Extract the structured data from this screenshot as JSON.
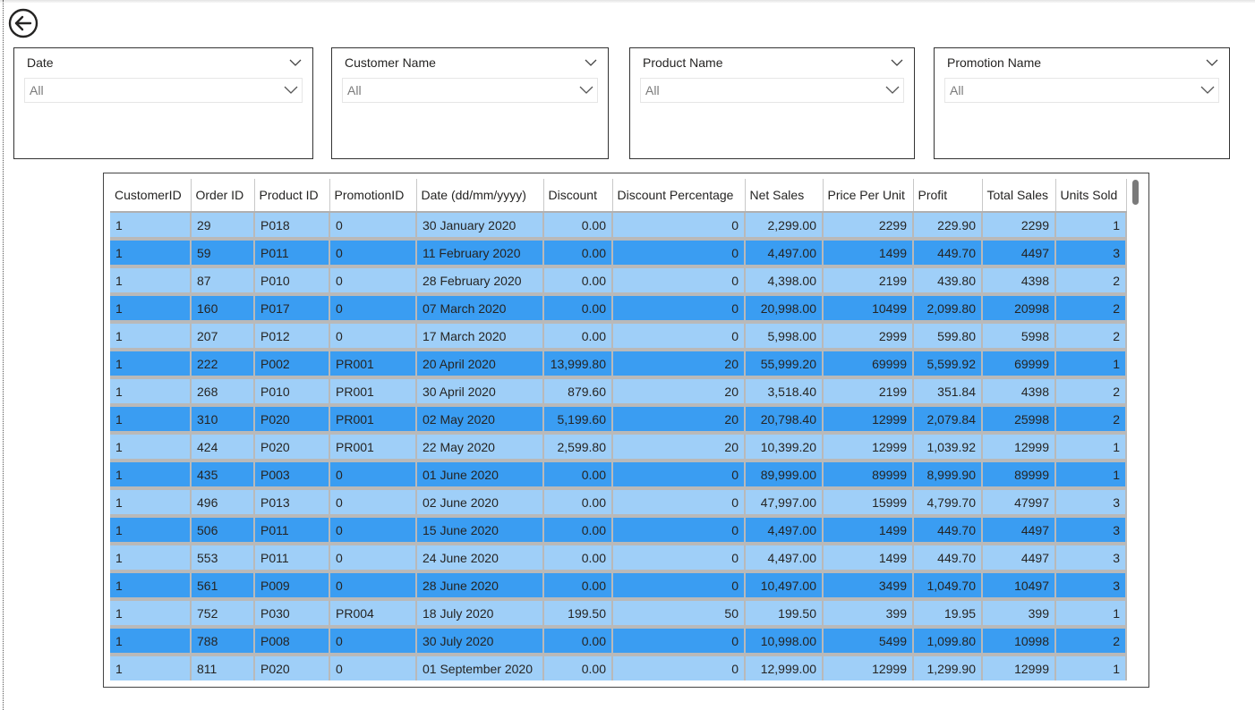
{
  "slicers": [
    {
      "title": "Date",
      "value": "All"
    },
    {
      "title": "Customer Name",
      "value": "All"
    },
    {
      "title": "Product Name",
      "value": "All"
    },
    {
      "title": "Promotion Name",
      "value": "All"
    }
  ],
  "icons": {
    "back": "back-arrow-icon",
    "chevron": "chevron-down-icon"
  },
  "colors": {
    "row_light": "#9fcff8",
    "row_dark": "#3a9df2",
    "row_separator": "#b9b9b9"
  },
  "table": {
    "columns": [
      "CustomerID",
      "Order ID",
      "Product ID",
      "PromotionID",
      "Date (dd/mm/yyyy)",
      "Discount",
      "Discount Percentage",
      "Net Sales",
      "Price Per Unit",
      "Profit",
      "Total Sales",
      "Units Sold"
    ],
    "rows": [
      [
        "1",
        "29",
        "P018",
        "0",
        "30 January 2020",
        "0.00",
        "0",
        "2,299.00",
        "2299",
        "229.90",
        "2299",
        "1"
      ],
      [
        "1",
        "59",
        "P011",
        "0",
        "11 February 2020",
        "0.00",
        "0",
        "4,497.00",
        "1499",
        "449.70",
        "4497",
        "3"
      ],
      [
        "1",
        "87",
        "P010",
        "0",
        "28 February 2020",
        "0.00",
        "0",
        "4,398.00",
        "2199",
        "439.80",
        "4398",
        "2"
      ],
      [
        "1",
        "160",
        "P017",
        "0",
        "07 March 2020",
        "0.00",
        "0",
        "20,998.00",
        "10499",
        "2,099.80",
        "20998",
        "2"
      ],
      [
        "1",
        "207",
        "P012",
        "0",
        "17 March 2020",
        "0.00",
        "0",
        "5,998.00",
        "2999",
        "599.80",
        "5998",
        "2"
      ],
      [
        "1",
        "222",
        "P002",
        "PR001",
        "20 April 2020",
        "13,999.80",
        "20",
        "55,999.20",
        "69999",
        "5,599.92",
        "69999",
        "1"
      ],
      [
        "1",
        "268",
        "P010",
        "PR001",
        "30 April 2020",
        "879.60",
        "20",
        "3,518.40",
        "2199",
        "351.84",
        "4398",
        "2"
      ],
      [
        "1",
        "310",
        "P020",
        "PR001",
        "02 May 2020",
        "5,199.60",
        "20",
        "20,798.40",
        "12999",
        "2,079.84",
        "25998",
        "2"
      ],
      [
        "1",
        "424",
        "P020",
        "PR001",
        "22 May 2020",
        "2,599.80",
        "20",
        "10,399.20",
        "12999",
        "1,039.92",
        "12999",
        "1"
      ],
      [
        "1",
        "435",
        "P003",
        "0",
        "01 June 2020",
        "0.00",
        "0",
        "89,999.00",
        "89999",
        "8,999.90",
        "89999",
        "1"
      ],
      [
        "1",
        "496",
        "P013",
        "0",
        "02 June 2020",
        "0.00",
        "0",
        "47,997.00",
        "15999",
        "4,799.70",
        "47997",
        "3"
      ],
      [
        "1",
        "506",
        "P011",
        "0",
        "15 June 2020",
        "0.00",
        "0",
        "4,497.00",
        "1499",
        "449.70",
        "4497",
        "3"
      ],
      [
        "1",
        "553",
        "P011",
        "0",
        "24 June 2020",
        "0.00",
        "0",
        "4,497.00",
        "1499",
        "449.70",
        "4497",
        "3"
      ],
      [
        "1",
        "561",
        "P009",
        "0",
        "28 June 2020",
        "0.00",
        "0",
        "10,497.00",
        "3499",
        "1,049.70",
        "10497",
        "3"
      ],
      [
        "1",
        "752",
        "P030",
        "PR004",
        "18 July 2020",
        "199.50",
        "50",
        "199.50",
        "399",
        "19.95",
        "399",
        "1"
      ],
      [
        "1",
        "788",
        "P008",
        "0",
        "30 July 2020",
        "0.00",
        "0",
        "10,998.00",
        "5499",
        "1,099.80",
        "10998",
        "2"
      ],
      [
        "1",
        "811",
        "P020",
        "0",
        "01 September 2020",
        "0.00",
        "0",
        "12,999.00",
        "12999",
        "1,299.90",
        "12999",
        "1"
      ]
    ]
  }
}
